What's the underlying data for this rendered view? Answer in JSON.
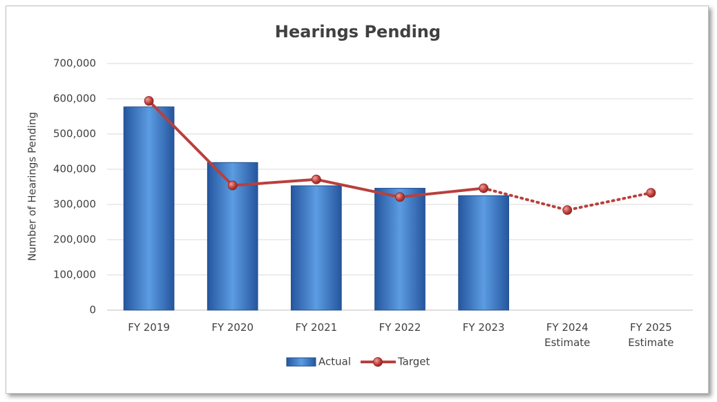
{
  "chart_data": {
    "type": "bar-line",
    "title": "Hearings Pending",
    "y_axis_label": "Number of Hearings  Pending",
    "categories": [
      "FY 2019",
      "FY 2020",
      "FY 2021",
      "FY 2022",
      "FY 2023",
      "FY 2024 Estimate",
      "FY 2025 Estimate"
    ],
    "series": [
      {
        "name": "Actual",
        "type": "bar",
        "color": "#3a75c4",
        "values": [
          577000,
          419000,
          353000,
          346000,
          325000,
          null,
          null
        ]
      },
      {
        "name": "Target",
        "type": "line",
        "color": "#b8403c",
        "values": [
          594000,
          354000,
          371000,
          321000,
          346000,
          284000,
          333000
        ],
        "dotted_after": "FY 2023"
      }
    ],
    "ylim": [
      0,
      700000
    ],
    "yticks": [
      0,
      {
        "value": 100000,
        "label": "100,000"
      },
      {
        "value": 200000,
        "label": "200,000"
      },
      {
        "value": 300000,
        "label": "300,000"
      },
      {
        "value": 400000,
        "label": "400,000"
      },
      {
        "value": 500000,
        "label": "500,000"
      },
      {
        "value": 600000,
        "label": "600,000"
      },
      {
        "value": 700000,
        "label": "700,000"
      }
    ],
    "grid": true,
    "legend": "bottom"
  }
}
